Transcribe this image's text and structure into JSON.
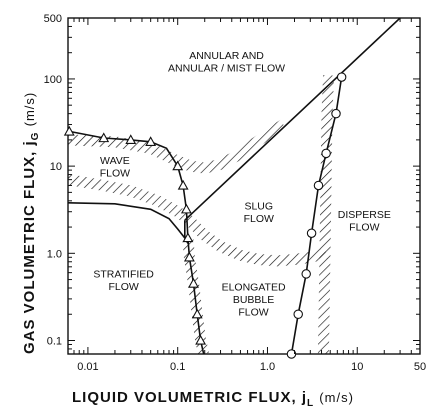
{
  "chart_data": {
    "type": "line",
    "xscale": "log",
    "yscale": "log",
    "xlim": [
      0.006,
      50
    ],
    "ylim": [
      0.07,
      500
    ],
    "grid": false,
    "xlabel": "LIQUID  VOLUMETRIC  FLUX,",
    "xlabel_symbol": "j",
    "xlabel_sub": "L",
    "xlabel_unit": "(m/s)",
    "ylabel": "GAS  VOLUMETRIC  FLUX,",
    "ylabel_symbol": "j",
    "ylabel_sub": "G",
    "ylabel_unit": "(m/s)",
    "x_ticks": [
      {
        "value": 0.01,
        "label": "0.01"
      },
      {
        "value": 0.1,
        "label": "0.1"
      },
      {
        "value": 1.0,
        "label": "1.0"
      },
      {
        "value": 10,
        "label": "10"
      },
      {
        "value": 50,
        "label": "50"
      }
    ],
    "y_ticks": [
      {
        "value": 0.1,
        "label": "0.1"
      },
      {
        "value": 1.0,
        "label": "1.0"
      },
      {
        "value": 10,
        "label": "10"
      },
      {
        "value": 100,
        "label": "100"
      },
      {
        "value": 500,
        "label": "500"
      }
    ],
    "regions": [
      {
        "lines": [
          "ANNULAR AND",
          "ANNULAR / MIST FLOW"
        ],
        "x": 0.35,
        "y": 160
      },
      {
        "lines": [
          "WAVE",
          "FLOW"
        ],
        "x": 0.02,
        "y": 10
      },
      {
        "lines": [
          "SLUG",
          "FLOW"
        ],
        "x": 0.8,
        "y": 3
      },
      {
        "lines": [
          "DISPERSE",
          "FLOW"
        ],
        "x": 12,
        "y": 2.4
      },
      {
        "lines": [
          "STRATIFIED",
          "FLOW"
        ],
        "x": 0.025,
        "y": 0.5
      },
      {
        "lines": [
          "ELONGATED",
          "BUBBLE",
          "FLOW"
        ],
        "x": 0.7,
        "y": 0.3
      }
    ],
    "series": [
      {
        "style": "solid",
        "marker": "triangle",
        "points": [
          [
            0.0062,
            25
          ],
          [
            0.015,
            21
          ],
          [
            0.03,
            20
          ],
          [
            0.05,
            19
          ],
          [
            0.075,
            16
          ],
          [
            0.1,
            10
          ],
          [
            0.115,
            6
          ],
          [
            0.125,
            3.2
          ],
          [
            0.13,
            1.5
          ],
          [
            0.135,
            0.9
          ],
          [
            0.15,
            0.45
          ],
          [
            0.165,
            0.2
          ],
          [
            0.18,
            0.1
          ],
          [
            0.195,
            0.07
          ]
        ],
        "marker_points": [
          [
            0.0062,
            25
          ],
          [
            0.015,
            21
          ],
          [
            0.03,
            20
          ],
          [
            0.05,
            19
          ],
          [
            0.1,
            10
          ],
          [
            0.115,
            6
          ],
          [
            0.125,
            3.2
          ],
          [
            0.13,
            1.5
          ],
          [
            0.135,
            0.9
          ],
          [
            0.15,
            0.45
          ],
          [
            0.165,
            0.2
          ],
          [
            0.18,
            0.1
          ]
        ]
      },
      {
        "style": "solid",
        "marker": "circle",
        "points": [
          [
            1.85,
            0.07
          ],
          [
            2.2,
            0.2
          ],
          [
            2.7,
            0.58
          ],
          [
            3.1,
            1.7
          ],
          [
            3.7,
            6
          ],
          [
            4.5,
            14
          ],
          [
            5.8,
            40
          ],
          [
            6.7,
            105
          ]
        ],
        "marker_points": [
          [
            1.85,
            0.07
          ],
          [
            2.2,
            0.2
          ],
          [
            2.7,
            0.58
          ],
          [
            3.1,
            1.7
          ],
          [
            3.7,
            6
          ],
          [
            4.5,
            14
          ],
          [
            5.8,
            40
          ],
          [
            6.7,
            105
          ]
        ]
      },
      {
        "style": "solid",
        "marker": "none",
        "points": [
          [
            0.006,
            3.8
          ],
          [
            0.02,
            3.7
          ],
          [
            0.05,
            3.2
          ],
          [
            0.08,
            2.5
          ],
          [
            0.1,
            1.9
          ],
          [
            0.12,
            1.5
          ],
          [
            0.13,
            1.3
          ]
        ]
      },
      {
        "style": "solid",
        "marker": "none",
        "points": [
          [
            0.12,
            2.4
          ],
          [
            30,
            500
          ]
        ]
      },
      {
        "style": "solid",
        "marker": "none",
        "points": [
          [
            0.12,
            1.5
          ],
          [
            0.12,
            2.4
          ]
        ]
      },
      {
        "style": "hatched",
        "marker": "none",
        "points": [
          [
            0.006,
            20
          ],
          [
            0.02,
            19
          ],
          [
            0.05,
            16
          ],
          [
            0.09,
            12
          ],
          [
            0.14,
            10
          ],
          [
            0.2,
            9.5
          ],
          [
            0.3,
            10.5
          ],
          [
            0.45,
            13
          ],
          [
            0.7,
            18
          ],
          [
            1.0,
            23
          ],
          [
            1.5,
            30
          ]
        ]
      },
      {
        "style": "hatched",
        "marker": "none",
        "points": [
          [
            0.006,
            7
          ],
          [
            0.015,
            6
          ],
          [
            0.03,
            5.2
          ],
          [
            0.06,
            4
          ],
          [
            0.1,
            3
          ],
          [
            0.14,
            2.3
          ],
          [
            0.2,
            1.6
          ],
          [
            0.3,
            1.2
          ],
          [
            0.5,
            0.95
          ],
          [
            0.8,
            0.85
          ],
          [
            1.3,
            0.82
          ],
          [
            2.0,
            0.85
          ],
          [
            3.0,
            0.9
          ],
          [
            4.5,
            1.0
          ]
        ]
      },
      {
        "style": "hatched",
        "marker": "none",
        "points": [
          [
            0.13,
            1.5
          ],
          [
            0.135,
            0.9
          ],
          [
            0.15,
            0.45
          ],
          [
            0.165,
            0.2
          ],
          [
            0.18,
            0.1
          ],
          [
            0.195,
            0.07
          ]
        ]
      },
      {
        "style": "hatched",
        "marker": "none",
        "points": [
          [
            4.2,
            0.07
          ],
          [
            4.3,
            0.3
          ],
          [
            4.4,
            1.5
          ],
          [
            4.5,
            8
          ],
          [
            4.6,
            40
          ],
          [
            4.8,
            110
          ]
        ]
      }
    ]
  }
}
